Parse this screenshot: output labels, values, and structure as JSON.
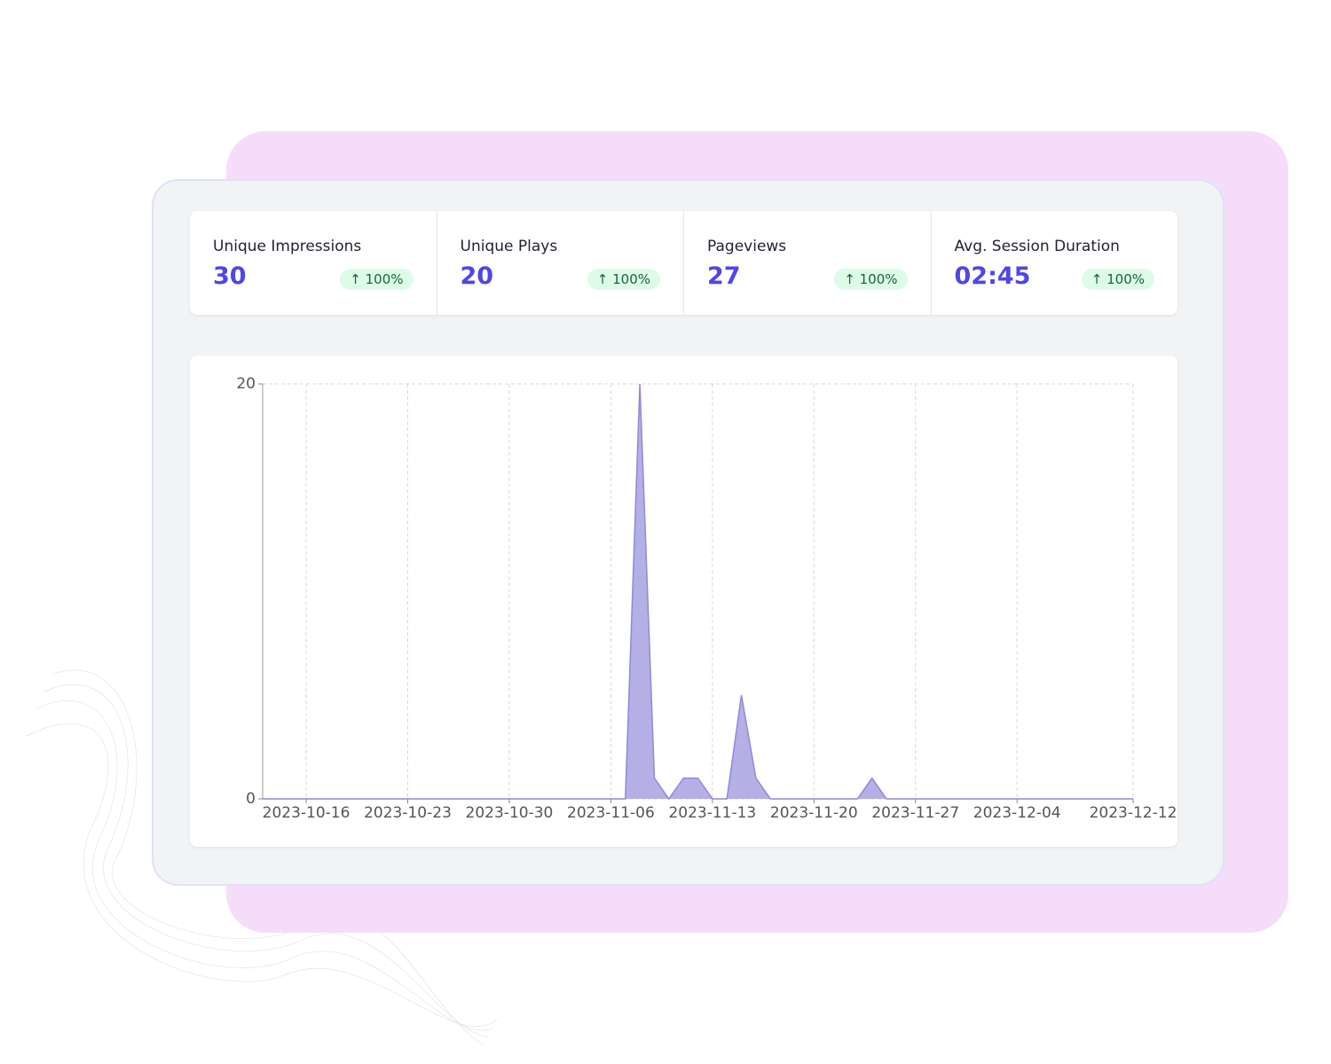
{
  "stats": [
    {
      "label": "Unique Impressions",
      "value": 30,
      "change": "100%"
    },
    {
      "label": "Unique Plays",
      "value": 20,
      "change": "100%"
    },
    {
      "label": "Pageviews",
      "value": 27,
      "change": "100%"
    },
    {
      "label": "Avg. Session Duration",
      "value": "02:45",
      "change": "100%"
    }
  ],
  "chart_data": {
    "type": "area",
    "color": "#b4b0e6",
    "line_color": "#8f89d9",
    "grid": true,
    "x": [
      "2023-10-13",
      "2023-10-14",
      "2023-10-15",
      "2023-10-16",
      "2023-10-17",
      "2023-10-18",
      "2023-10-19",
      "2023-10-20",
      "2023-10-21",
      "2023-10-22",
      "2023-10-23",
      "2023-10-24",
      "2023-10-25",
      "2023-10-26",
      "2023-10-27",
      "2023-10-28",
      "2023-10-29",
      "2023-10-30",
      "2023-10-31",
      "2023-11-01",
      "2023-11-02",
      "2023-11-03",
      "2023-11-04",
      "2023-11-05",
      "2023-11-06",
      "2023-11-07",
      "2023-11-08",
      "2023-11-09",
      "2023-11-10",
      "2023-11-11",
      "2023-11-12",
      "2023-11-13",
      "2023-11-14",
      "2023-11-15",
      "2023-11-16",
      "2023-11-17",
      "2023-11-18",
      "2023-11-19",
      "2023-11-20",
      "2023-11-21",
      "2023-11-22",
      "2023-11-23",
      "2023-11-24",
      "2023-11-25",
      "2023-11-26",
      "2023-11-27",
      "2023-11-28",
      "2023-11-29",
      "2023-11-30",
      "2023-12-01",
      "2023-12-02",
      "2023-12-03",
      "2023-12-04",
      "2023-12-05",
      "2023-12-06",
      "2023-12-07",
      "2023-12-08",
      "2023-12-09",
      "2023-12-10",
      "2023-12-11",
      "2023-12-12"
    ],
    "values": [
      0,
      0,
      0,
      0,
      0,
      0,
      0,
      0,
      0,
      0,
      0,
      0,
      0,
      0,
      0,
      0,
      0,
      0,
      0,
      0,
      0,
      0,
      0,
      0,
      0,
      0,
      20,
      1,
      0,
      1,
      1,
      0,
      0,
      5,
      1,
      0,
      0,
      0,
      0,
      0,
      0,
      0,
      1,
      0,
      0,
      0,
      0,
      0,
      0,
      0,
      0,
      0,
      0,
      0,
      0,
      0,
      0,
      0,
      0,
      0,
      0
    ],
    "xlim": [
      "2023-10-13",
      "2023-12-12"
    ],
    "xticks": [
      "2023-10-16",
      "2023-10-23",
      "2023-10-30",
      "2023-11-06",
      "2023-11-13",
      "2023-11-20",
      "2023-11-27",
      "2023-12-04",
      "2023-12-12"
    ],
    "ylim": [
      0,
      20
    ],
    "yticks": [
      0,
      20
    ]
  }
}
